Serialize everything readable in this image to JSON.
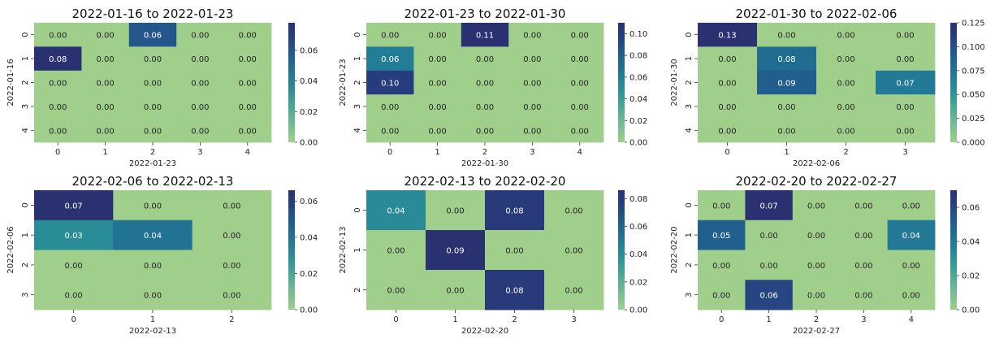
{
  "chart_data": [
    {
      "type": "heatmap",
      "title": "2022-01-16 to 2022-01-23",
      "xlabel": "2022-01-23",
      "ylabel": "2022-01-16",
      "x_ticks": [
        "0",
        "1",
        "2",
        "3",
        "4"
      ],
      "y_ticks": [
        "0",
        "1",
        "2",
        "3",
        "4"
      ],
      "values": [
        [
          0.0,
          0.0,
          0.06,
          0.0,
          0.0
        ],
        [
          0.08,
          0.0,
          0.0,
          0.0,
          0.0
        ],
        [
          0.0,
          0.0,
          0.0,
          0.0,
          0.0
        ],
        [
          0.0,
          0.0,
          0.0,
          0.0,
          0.0
        ],
        [
          0.0,
          0.0,
          0.0,
          0.0,
          0.0
        ]
      ],
      "colorbar_range": [
        0,
        0.078
      ],
      "colorbar_ticks": [
        "0.00",
        "0.02",
        "0.04",
        "0.06"
      ]
    },
    {
      "type": "heatmap",
      "title": "2022-01-23 to 2022-01-30",
      "xlabel": "2022-01-30",
      "ylabel": "2022-01-23",
      "x_ticks": [
        "0",
        "1",
        "2",
        "3",
        "4"
      ],
      "y_ticks": [
        "0",
        "1",
        "2",
        "3",
        "4"
      ],
      "values": [
        [
          0.0,
          0.0,
          0.11,
          0.0,
          0.0
        ],
        [
          0.06,
          0.0,
          0.0,
          0.0,
          0.0
        ],
        [
          0.1,
          0.0,
          0.0,
          0.0,
          0.0
        ],
        [
          0.0,
          0.0,
          0.0,
          0.0,
          0.0
        ],
        [
          0.0,
          0.0,
          0.0,
          0.0,
          0.0
        ]
      ],
      "colorbar_range": [
        0,
        0.11
      ],
      "colorbar_ticks": [
        "0.00",
        "0.02",
        "0.04",
        "0.06",
        "0.08",
        "0.10"
      ]
    },
    {
      "type": "heatmap",
      "title": "2022-01-30 to 2022-02-06",
      "xlabel": "2022-02-06",
      "ylabel": "2022-01-30",
      "x_ticks": [
        "0",
        "1",
        "2",
        "3"
      ],
      "y_ticks": [
        "0",
        "1",
        "2",
        "3",
        "4"
      ],
      "values": [
        [
          0.13,
          0.0,
          0.0,
          0.0
        ],
        [
          0.0,
          0.08,
          0.0,
          0.0
        ],
        [
          0.0,
          0.09,
          0.0,
          0.07
        ],
        [
          0.0,
          0.0,
          0.0,
          0.0
        ],
        [
          0.0,
          0.0,
          0.0,
          0.0
        ]
      ],
      "colorbar_range": [
        0,
        0.125
      ],
      "colorbar_ticks": [
        "0.000",
        "0.025",
        "0.050",
        "0.075",
        "0.100",
        "0.125"
      ]
    },
    {
      "type": "heatmap",
      "title": "2022-02-06 to 2022-02-13",
      "xlabel": "2022-02-13",
      "ylabel": "2022-02-06",
      "x_ticks": [
        "0",
        "1",
        "2"
      ],
      "y_ticks": [
        "0",
        "1",
        "2",
        "3"
      ],
      "values": [
        [
          0.07,
          0.0,
          0.0
        ],
        [
          0.03,
          0.04,
          0.0
        ],
        [
          0.0,
          0.0,
          0.0
        ],
        [
          0.0,
          0.0,
          0.0
        ]
      ],
      "colorbar_range": [
        0,
        0.066
      ],
      "colorbar_ticks": [
        "0.00",
        "0.02",
        "0.04",
        "0.06"
      ]
    },
    {
      "type": "heatmap",
      "title": "2022-02-13 to 2022-02-20",
      "xlabel": "2022-02-20",
      "ylabel": "2022-02-13",
      "x_ticks": [
        "0",
        "1",
        "2",
        "3"
      ],
      "y_ticks": [
        "0",
        "1",
        "2"
      ],
      "values": [
        [
          0.04,
          0.0,
          0.08,
          0.0
        ],
        [
          0.0,
          0.09,
          0.0,
          0.0
        ],
        [
          0.0,
          0.0,
          0.08,
          0.0
        ]
      ],
      "colorbar_range": [
        0,
        0.086
      ],
      "colorbar_ticks": [
        "0.00",
        "0.02",
        "0.04",
        "0.06",
        "0.08"
      ]
    },
    {
      "type": "heatmap",
      "title": "2022-02-20 to 2022-02-27",
      "xlabel": "2022-02-27",
      "ylabel": "2022-02-20",
      "x_ticks": [
        "0",
        "1",
        "2",
        "3",
        "4"
      ],
      "y_ticks": [
        "0",
        "1",
        "2",
        "3"
      ],
      "values": [
        [
          0.0,
          0.07,
          0.0,
          0.0,
          0.0
        ],
        [
          0.05,
          0.0,
          0.0,
          0.0,
          0.04
        ],
        [
          0.0,
          0.0,
          0.0,
          0.0,
          0.0
        ],
        [
          0.0,
          0.06,
          0.0,
          0.0,
          0.0
        ]
      ],
      "colorbar_range": [
        0,
        0.07
      ],
      "colorbar_ticks": [
        "0.00",
        "0.02",
        "0.04",
        "0.06"
      ]
    }
  ],
  "colormap": [
    "#a0cf8b",
    "#7fc190",
    "#5fb293",
    "#40a196",
    "#2b8e97",
    "#237b96",
    "#206891",
    "#23548a",
    "#273f7f",
    "#293170"
  ],
  "cell_text_color_light": "#ffffff",
  "cell_text_color_dark": "#262626"
}
